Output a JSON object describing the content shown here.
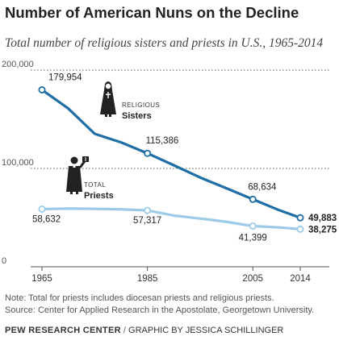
{
  "title": "Number of American Nuns on the Decline",
  "subtitle": "Total number of religious sisters and priests in U.S., 1965-2014",
  "chart_data": {
    "type": "line",
    "x_ticks": [
      1965,
      1985,
      2005,
      2014
    ],
    "y_ticks": [
      0,
      100000,
      200000
    ],
    "y_tick_labels": [
      "0",
      "100,000",
      "200,000"
    ],
    "ylim": [
      0,
      200000
    ],
    "xlim": [
      1965,
      2014
    ],
    "grid": "horizontal dotted",
    "series": [
      {
        "key": "sisters",
        "name": "Sisters",
        "group_label": "RELIGIOUS",
        "color": "#1f6ea6",
        "x": [
          1965,
          1970,
          1975,
          1980,
          1985,
          1990,
          1995,
          2000,
          2005,
          2010,
          2014
        ],
        "values": [
          179954,
          160931,
          135225,
          126517,
          115386,
          103269,
          90809,
          79814,
          68634,
          57544,
          49883
        ],
        "labels": [
          {
            "x": 1965,
            "text": "179,954"
          },
          {
            "x": 1985,
            "text": "115,386"
          },
          {
            "x": 2005,
            "text": "68,634"
          },
          {
            "x": 2014,
            "text": "49,883"
          }
        ]
      },
      {
        "key": "priests",
        "name": "Priests",
        "group_label": "TOTAL",
        "color": "#9ccbe8",
        "x": [
          1965,
          1970,
          1975,
          1980,
          1985,
          1990,
          1995,
          2000,
          2005,
          2010,
          2014
        ],
        "values": [
          58632,
          59192,
          58909,
          58398,
          57317,
          52124,
          49054,
          45699,
          41399,
          39993,
          38275
        ],
        "labels": [
          {
            "x": 1965,
            "text": "58,632"
          },
          {
            "x": 1985,
            "text": "57,317"
          },
          {
            "x": 2005,
            "text": "41,399"
          },
          {
            "x": 2014,
            "text": "38,275"
          }
        ]
      }
    ]
  },
  "icons": {
    "nun": "nun-icon",
    "priest": "priest-icon"
  },
  "notes": {
    "note": "Note: Total for priests includes diocesan priests and religious priests.",
    "source": "Source: Center for Applied Research in the Apostolate, Georgetown University."
  },
  "footer": {
    "org": "PEW RESEARCH CENTER",
    "separator": "/",
    "credit": "GRAPHIC BY JESSICA SCHILLINGER"
  }
}
